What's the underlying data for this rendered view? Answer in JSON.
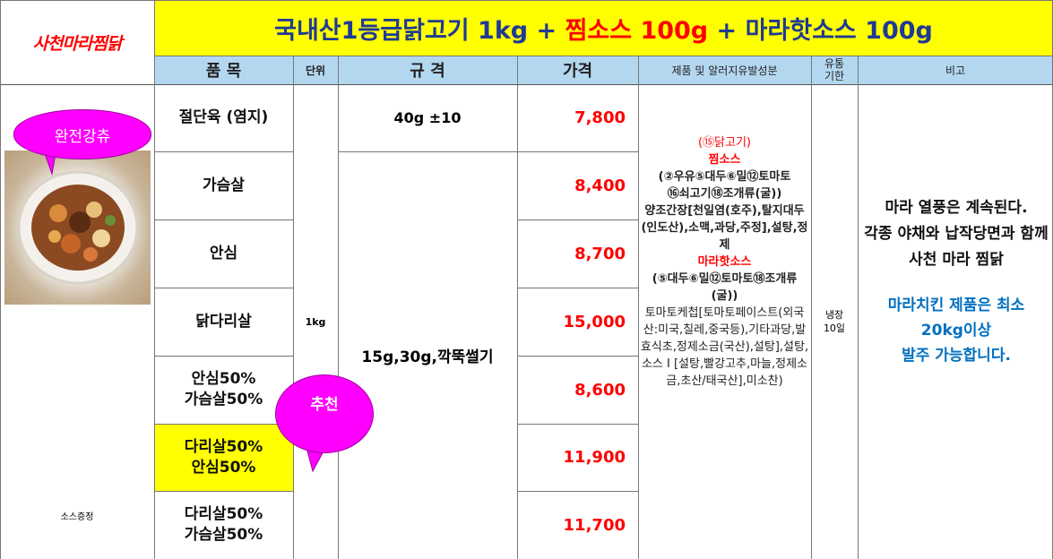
{
  "logo_text": "사천마라찜닭",
  "title": {
    "part1": "국내산1등급닭고기 1kg + ",
    "part2": "찜소스 100g",
    "part3": " + 마라핫소스 100g"
  },
  "headers": {
    "item": "품 목",
    "unit": "단위",
    "spec": "규 격",
    "price": "가격",
    "ingredients": "제품 및 알러지유발성분",
    "expiry": "유통기한",
    "note": "비고"
  },
  "rows": [
    {
      "item": "절단육 (염지)",
      "price": "7,800"
    },
    {
      "item": "가슴살",
      "price": "8,400"
    },
    {
      "item": "안심",
      "price": "8,700"
    },
    {
      "item": "닭다리살",
      "price": "15,000"
    },
    {
      "item_line1": "안심50%",
      "item_line2": "가슴살50%",
      "price": "8,600"
    },
    {
      "item_line1": "다리살50%",
      "item_line2": "안심50%",
      "price": "11,900"
    },
    {
      "item_line1": "다리살50%",
      "item_line2": "가슴살50%",
      "price": "11,700"
    }
  ],
  "unit_value": "1kg",
  "spec_first": "40g ±10",
  "spec_rest": "15g,30g,깍뚝썰기",
  "ingredients": {
    "l1": "(⑮닭고기)",
    "l2": "찜소스",
    "l3": "(②우유⑤대두⑥밀⑫토마토",
    "l4": "⑯쇠고기⑱조개류(굴))",
    "l5": "양조간장[천일염(호주),탈지대두(인도산),소맥,과당,주정],설탕,정제",
    "l6": "마라핫소스",
    "l7": "(⑤대두⑥밀⑫토마토⑱조개류(굴))",
    "l8": "토마토케첩[토마토페이스트(외국산:미국,칠레,중국등),기타과당,발효식초,정제소금(국산),설탕],설탕,소스 I [설탕,빨강고추,마늘,정제소금,초산/태국산],미소찬)"
  },
  "expiry_value": "냉장 10일",
  "note": {
    "black1": "마라 열풍은 계속된다.",
    "black2": "각종 야채와 납작당면과 함께",
    "black3": "사천 마라 찜닭",
    "blue1": "마라치킨 제품은 최소",
    "blue2": "20kg이상",
    "blue3": "발주 가능합니다."
  },
  "bubble_top": "완전강츄",
  "bubble_recommend": "추천",
  "sauce_gift": "소스증정",
  "colors": {
    "title_bg": "#ffff00",
    "header_bg": "#b4d7f0",
    "highlight_row": "#ffff00",
    "bubble": "#ff00ff",
    "price": "#ff0000",
    "note_blue": "#0070c0"
  }
}
